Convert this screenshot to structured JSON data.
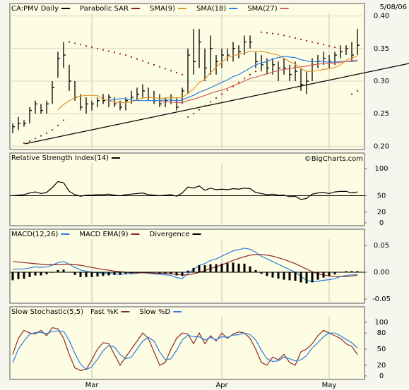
{
  "chart_data": [
    {
      "type": "ohlc",
      "date": "5/08/06",
      "ylim": [
        0.195,
        0.405
      ],
      "yticks": [
        {
          "value": 0.4,
          "label": "0.40"
        },
        0.35,
        {
          "value": 0.3,
          "label": "0.30"
        },
        0.25,
        {
          "value": 0.2,
          "label": "0.20"
        }
      ],
      "grid": true,
      "series": [
        {
          "name": "CA:PMV Daily",
          "color": "#000000",
          "style": "hlc",
          "high": [
            0.235,
            0.245,
            0.24,
            0.26,
            0.27,
            0.265,
            0.27,
            0.3,
            0.345,
            0.36,
            0.325,
            0.3,
            0.28,
            0.275,
            0.27,
            0.275,
            0.28,
            0.28,
            0.275,
            0.27,
            0.275,
            0.285,
            0.29,
            0.295,
            0.29,
            0.285,
            0.28,
            0.275,
            0.28,
            0.275,
            0.29,
            0.35,
            0.38,
            0.38,
            0.35,
            0.37,
            0.34,
            0.35,
            0.35,
            0.36,
            0.355,
            0.37,
            0.37,
            0.345,
            0.34,
            0.335,
            0.335,
            0.33,
            0.335,
            0.325,
            0.33,
            0.32,
            0.315,
            0.335,
            0.34,
            0.345,
            0.34,
            0.345,
            0.355,
            0.355,
            0.36,
            0.38
          ],
          "low": [
            0.22,
            0.225,
            0.23,
            0.235,
            0.25,
            0.25,
            0.25,
            0.265,
            0.305,
            0.32,
            0.285,
            0.27,
            0.255,
            0.25,
            0.255,
            0.26,
            0.265,
            0.26,
            0.26,
            0.255,
            0.255,
            0.265,
            0.27,
            0.275,
            0.27,
            0.265,
            0.26,
            0.26,
            0.265,
            0.255,
            0.265,
            0.28,
            0.31,
            0.32,
            0.3,
            0.31,
            0.31,
            0.32,
            0.33,
            0.33,
            0.335,
            0.34,
            0.35,
            0.32,
            0.315,
            0.31,
            0.31,
            0.3,
            0.31,
            0.3,
            0.3,
            0.285,
            0.28,
            0.3,
            0.32,
            0.325,
            0.32,
            0.325,
            0.335,
            0.34,
            0.33,
            0.34
          ],
          "close": [
            0.23,
            0.235,
            0.235,
            0.255,
            0.265,
            0.255,
            0.265,
            0.29,
            0.335,
            0.34,
            0.3,
            0.275,
            0.26,
            0.265,
            0.265,
            0.27,
            0.27,
            0.275,
            0.265,
            0.26,
            0.27,
            0.275,
            0.28,
            0.285,
            0.275,
            0.27,
            0.265,
            0.27,
            0.275,
            0.26,
            0.285,
            0.34,
            0.33,
            0.36,
            0.32,
            0.35,
            0.33,
            0.34,
            0.34,
            0.35,
            0.345,
            0.36,
            0.36,
            0.33,
            0.325,
            0.32,
            0.325,
            0.32,
            0.32,
            0.31,
            0.315,
            0.295,
            0.3,
            0.325,
            0.33,
            0.335,
            0.33,
            0.34,
            0.345,
            0.35,
            0.34,
            0.355
          ]
        },
        {
          "name": "Parabolic SAR",
          "color": "#8b1a1a",
          "style": "dots",
          "values": [
            null,
            null,
            0.205,
            0.208,
            0.212,
            0.216,
            0.22,
            0.225,
            0.232,
            0.24,
            0.36,
            0.358,
            0.356,
            0.354,
            0.352,
            0.35,
            0.348,
            0.346,
            0.344,
            0.342,
            0.34,
            0.337,
            0.334,
            0.331,
            0.328,
            0.325,
            0.322,
            0.319,
            0.316,
            0.313,
            0.31,
            0.245,
            0.25,
            0.256,
            0.262,
            0.268,
            0.274,
            0.28,
            0.286,
            0.292,
            0.298,
            0.304,
            0.31,
            0.315,
            0.375,
            0.374,
            0.373,
            0.372,
            0.37,
            0.368,
            0.366,
            0.364,
            0.362,
            0.36,
            0.358,
            0.356,
            0.354,
            0.352,
            0.35,
            0.35,
            0.28,
            0.285
          ]
        },
        {
          "name": "SMA(9)",
          "color": "#e0962e",
          "style": "line",
          "values": [
            null,
            null,
            null,
            null,
            null,
            null,
            null,
            null,
            0.256,
            0.264,
            0.27,
            0.275,
            0.277,
            0.278,
            0.278,
            0.278,
            0.272,
            0.27,
            0.268,
            0.267,
            0.267,
            0.268,
            0.271,
            0.274,
            0.275,
            0.275,
            0.273,
            0.274,
            0.275,
            0.274,
            0.275,
            0.281,
            0.288,
            0.298,
            0.303,
            0.313,
            0.321,
            0.329,
            0.336,
            0.339,
            0.341,
            0.343,
            0.346,
            0.345,
            0.346,
            0.344,
            0.342,
            0.34,
            0.335,
            0.33,
            0.326,
            0.319,
            0.315,
            0.315,
            0.316,
            0.318,
            0.319,
            0.321,
            0.325,
            0.332,
            0.335,
            0.339
          ]
        },
        {
          "name": "SMA(18)",
          "color": "#2a7de1",
          "style": "line",
          "values": [
            null,
            null,
            null,
            null,
            null,
            null,
            null,
            null,
            null,
            null,
            null,
            null,
            null,
            null,
            null,
            null,
            null,
            0.27,
            0.272,
            0.273,
            0.273,
            0.271,
            0.27,
            0.27,
            0.27,
            0.27,
            0.27,
            0.271,
            0.271,
            0.27,
            0.271,
            0.275,
            0.278,
            0.283,
            0.286,
            0.29,
            0.294,
            0.298,
            0.302,
            0.307,
            0.31,
            0.315,
            0.32,
            0.325,
            0.328,
            0.33,
            0.334,
            0.336,
            0.338,
            0.337,
            0.336,
            0.333,
            0.331,
            0.33,
            0.33,
            0.33,
            0.329,
            0.329,
            0.33,
            0.33,
            0.33,
            0.331
          ]
        },
        {
          "name": "SMA(27)",
          "color": "#d95c5c",
          "style": "line",
          "values": [
            null,
            null,
            null,
            null,
            null,
            null,
            null,
            null,
            null,
            null,
            null,
            null,
            null,
            null,
            null,
            null,
            null,
            null,
            null,
            null,
            null,
            null,
            null,
            null,
            null,
            null,
            0.268,
            0.268,
            0.268,
            0.267,
            0.267,
            0.27,
            0.272,
            0.275,
            0.278,
            0.281,
            0.284,
            0.286,
            0.289,
            0.293,
            0.296,
            0.3,
            0.304,
            0.306,
            0.309,
            0.311,
            0.314,
            0.316,
            0.318,
            0.319,
            0.321,
            0.322,
            0.323,
            0.325,
            0.326,
            0.327,
            0.327,
            0.328,
            0.329,
            0.33,
            0.331,
            0.332
          ]
        }
      ]
    },
    {
      "type": "line",
      "watermark": "©BigCharts.com",
      "ylim": [
        0,
        100
      ],
      "yticks": [
        100,
        50,
        20,
        0
      ],
      "reference": 50,
      "series": [
        {
          "name": "Relative Strength Index(14)",
          "color": "#000000",
          "values": [
            50,
            51,
            52,
            55,
            57,
            54,
            56,
            65,
            76,
            74,
            58,
            52,
            49,
            51,
            51,
            52,
            52,
            53,
            51,
            50,
            52,
            53,
            54,
            55,
            52,
            51,
            50,
            51,
            52,
            49,
            55,
            66,
            64,
            68,
            60,
            64,
            61,
            62,
            61,
            63,
            62,
            64,
            63,
            56,
            54,
            52,
            53,
            51,
            51,
            48,
            49,
            43,
            45,
            53,
            55,
            56,
            54,
            57,
            58,
            58,
            55,
            57
          ]
        }
      ]
    },
    {
      "type": "combo",
      "ylim": [
        -0.058,
        0.058
      ],
      "yticks": [
        0.05,
        {
          "value": 0,
          "label": "0.00"
        },
        -0.05
      ],
      "series": [
        {
          "name": "MACD(12,26)",
          "color": "#2a7de1",
          "style": "line",
          "values": [
            0.005,
            0.006,
            0.006,
            0.008,
            0.01,
            0.009,
            0.01,
            0.013,
            0.018,
            0.02,
            0.015,
            0.009,
            0.004,
            0.002,
            0,
            -0.001,
            -0.002,
            -0.002,
            -0.003,
            -0.004,
            -0.003,
            -0.003,
            -0.002,
            -0.001,
            -0.002,
            -0.003,
            -0.004,
            -0.005,
            -0.006,
            -0.01,
            -0.012,
            -0.002,
            0.005,
            0.013,
            0.016,
            0.022,
            0.025,
            0.03,
            0.035,
            0.04,
            0.042,
            0.045,
            0.043,
            0.037,
            0.03,
            0.025,
            0.02,
            0.015,
            0.01,
            0.005,
            0,
            -0.008,
            -0.015,
            -0.018,
            -0.017,
            -0.015,
            -0.014,
            -0.012,
            -0.008,
            -0.006,
            -0.005,
            -0.004
          ]
        },
        {
          "name": "MACD EMA(9)",
          "color": "#8b2a2a",
          "style": "line",
          "values": [
            0.02,
            0.019,
            0.018,
            0.017,
            0.016,
            0.015,
            0.014,
            0.014,
            0.014,
            0.015,
            0.015,
            0.014,
            0.013,
            0.011,
            0.009,
            0.007,
            0.005,
            0.004,
            0.002,
            0.001,
            0,
            -0.001,
            -0.001,
            -0.001,
            -0.001,
            -0.002,
            -0.002,
            -0.002,
            -0.003,
            -0.004,
            -0.005,
            -0.005,
            -0.003,
            0,
            0.003,
            0.007,
            0.01,
            0.014,
            0.018,
            0.022,
            0.026,
            0.029,
            0.032,
            0.033,
            0.033,
            0.032,
            0.03,
            0.027,
            0.024,
            0.02,
            0.016,
            0.011,
            0.006,
            0.001,
            -0.003,
            -0.005,
            -0.007,
            -0.008,
            -0.008,
            -0.008,
            -0.007,
            -0.006
          ]
        },
        {
          "name": "Divergence",
          "color": "#000000",
          "style": "bar",
          "values": [
            -0.015,
            -0.013,
            -0.012,
            -0.009,
            -0.006,
            -0.006,
            -0.004,
            -0.001,
            0.004,
            0.005,
            0,
            -0.005,
            -0.009,
            -0.009,
            -0.009,
            -0.008,
            -0.007,
            -0.006,
            -0.005,
            -0.005,
            -0.003,
            -0.002,
            -0.001,
            0,
            -0.001,
            -0.001,
            -0.002,
            -0.003,
            -0.003,
            -0.006,
            -0.007,
            0.003,
            0.008,
            0.013,
            0.013,
            0.015,
            0.015,
            0.016,
            0.017,
            0.018,
            0.016,
            0.016,
            0.011,
            0.004,
            -0.003,
            -0.007,
            -0.01,
            -0.012,
            -0.014,
            -0.015,
            -0.016,
            -0.019,
            -0.021,
            -0.019,
            -0.014,
            -0.01,
            -0.007,
            -0.004,
            0,
            0.002,
            0.002,
            0.002
          ]
        }
      ]
    },
    {
      "type": "line",
      "title": "Slow Stochastic(5,5)",
      "ylim": [
        0,
        100
      ],
      "yticks": [
        100,
        80,
        50,
        20,
        0
      ],
      "categories": [
        null,
        null,
        null,
        null,
        null,
        null,
        null,
        null,
        null,
        null,
        null,
        null,
        null,
        null,
        "Mar",
        null,
        null,
        null,
        null,
        null,
        null,
        null,
        null,
        null,
        null,
        null,
        null,
        null,
        null,
        null,
        null,
        null,
        null,
        null,
        null,
        null,
        null,
        "Apr",
        null,
        null,
        null,
        null,
        null,
        null,
        null,
        null,
        null,
        null,
        null,
        null,
        null,
        null,
        null,
        null,
        null,
        null,
        "May",
        null,
        null,
        null,
        null,
        null
      ],
      "series": [
        {
          "name": "Fast %K",
          "color": "#8b2a2a",
          "values": [
            40,
            70,
            85,
            80,
            78,
            85,
            75,
            90,
            88,
            70,
            40,
            15,
            10,
            12,
            30,
            50,
            62,
            60,
            40,
            20,
            35,
            50,
            65,
            80,
            70,
            45,
            20,
            25,
            50,
            70,
            80,
            78,
            60,
            80,
            60,
            75,
            65,
            80,
            70,
            78,
            82,
            80,
            70,
            50,
            25,
            20,
            35,
            30,
            40,
            25,
            20,
            45,
            50,
            60,
            75,
            85,
            80,
            75,
            70,
            60,
            55,
            40
          ]
        },
        {
          "name": "Slow %D",
          "color": "#2a7de1",
          "values": [
            25,
            50,
            65,
            78,
            81,
            81,
            79,
            83,
            84,
            83,
            66,
            42,
            22,
            12,
            17,
            31,
            47,
            57,
            54,
            40,
            32,
            35,
            50,
            65,
            72,
            65,
            45,
            30,
            32,
            48,
            67,
            76,
            73,
            73,
            67,
            72,
            67,
            73,
            72,
            76,
            77,
            80,
            77,
            67,
            48,
            32,
            27,
            28,
            35,
            32,
            28,
            30,
            38,
            52,
            62,
            73,
            80,
            80,
            75,
            68,
            62,
            52
          ]
        }
      ]
    }
  ]
}
